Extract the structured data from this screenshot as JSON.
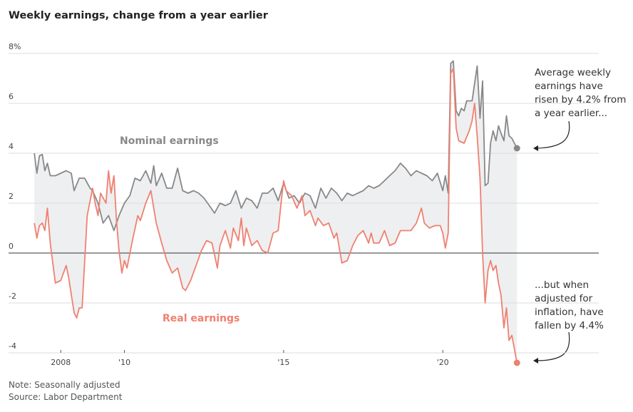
{
  "chart_data": {
    "type": "line",
    "title": "Weekly earnings, change from a year earlier",
    "xlim": [
      2006.36,
      2024.9
    ],
    "xticks": [
      {
        "value": 2008,
        "label": "2008"
      },
      {
        "value": 2010,
        "label": "'10"
      },
      {
        "value": 2015,
        "label": "'15"
      },
      {
        "value": 2020,
        "label": "'20"
      }
    ],
    "ylim": [
      -4,
      8
    ],
    "yticks": [
      {
        "value": 8,
        "label": "8%"
      },
      6,
      4,
      2,
      0,
      -2,
      -4
    ],
    "grid": true,
    "series": [
      {
        "name": "Nominal earnings",
        "color": "#888888",
        "x": [
          2007.17,
          2007.25,
          2007.33,
          2007.42,
          2007.5,
          2007.58,
          2007.67,
          2007.83,
          2008.0,
          2008.17,
          2008.33,
          2008.42,
          2008.58,
          2008.75,
          2008.92,
          2009.0,
          2009.17,
          2009.33,
          2009.5,
          2009.67,
          2009.83,
          2010.0,
          2010.17,
          2010.33,
          2010.5,
          2010.67,
          2010.83,
          2010.92,
          2011.0,
          2011.17,
          2011.33,
          2011.5,
          2011.67,
          2011.83,
          2012.0,
          2012.17,
          2012.33,
          2012.5,
          2012.67,
          2012.83,
          2013.0,
          2013.17,
          2013.33,
          2013.5,
          2013.67,
          2013.83,
          2014.0,
          2014.17,
          2014.33,
          2014.5,
          2014.67,
          2014.83,
          2015.0,
          2015.17,
          2015.33,
          2015.5,
          2015.67,
          2015.83,
          2016.0,
          2016.17,
          2016.33,
          2016.5,
          2016.67,
          2016.83,
          2017.0,
          2017.17,
          2017.33,
          2017.5,
          2017.67,
          2017.83,
          2018.0,
          2018.17,
          2018.33,
          2018.5,
          2018.67,
          2018.83,
          2019.0,
          2019.17,
          2019.33,
          2019.5,
          2019.67,
          2019.83,
          2020.0,
          2020.08,
          2020.17,
          2020.25,
          2020.33,
          2020.42,
          2020.5,
          2020.58,
          2020.67,
          2020.75,
          2020.92,
          2021.0,
          2021.08,
          2021.17,
          2021.25,
          2021.33,
          2021.42,
          2021.5,
          2021.58,
          2021.67,
          2021.75,
          2021.83,
          2021.92,
          2022.0,
          2022.08,
          2022.17,
          2022.33
        ],
        "values": [
          4.0,
          3.2,
          3.9,
          3.95,
          3.3,
          3.6,
          3.1,
          3.1,
          3.2,
          3.3,
          3.2,
          2.5,
          3.0,
          3.0,
          2.6,
          2.5,
          2.0,
          1.2,
          1.5,
          0.9,
          1.5,
          2.0,
          2.3,
          3.0,
          2.9,
          3.3,
          2.8,
          3.5,
          2.7,
          3.2,
          2.6,
          2.6,
          3.4,
          2.5,
          2.4,
          2.5,
          2.4,
          2.2,
          1.9,
          1.6,
          2.0,
          1.9,
          2.0,
          2.5,
          1.8,
          2.2,
          2.1,
          1.8,
          2.4,
          2.4,
          2.6,
          2.1,
          2.8,
          2.2,
          2.3,
          2.0,
          2.4,
          2.3,
          1.8,
          2.6,
          2.2,
          2.6,
          2.4,
          2.1,
          2.4,
          2.3,
          2.4,
          2.5,
          2.7,
          2.6,
          2.7,
          2.9,
          3.1,
          3.3,
          3.6,
          3.4,
          3.1,
          3.3,
          3.2,
          3.1,
          2.9,
          3.2,
          2.5,
          3.1,
          2.4,
          7.6,
          7.7,
          5.7,
          5.5,
          5.8,
          5.7,
          6.1,
          6.1,
          6.8,
          7.5,
          5.4,
          6.9,
          2.7,
          2.8,
          4.4,
          4.9,
          4.5,
          5.1,
          4.8,
          4.5,
          5.5,
          4.7,
          4.6,
          4.2
        ]
      },
      {
        "name": "Real earnings",
        "color": "#f08070",
        "x": [
          2007.17,
          2007.25,
          2007.33,
          2007.42,
          2007.5,
          2007.58,
          2007.67,
          2007.83,
          2008.0,
          2008.17,
          2008.25,
          2008.42,
          2008.5,
          2008.58,
          2008.67,
          2008.83,
          2009.0,
          2009.08,
          2009.17,
          2009.25,
          2009.42,
          2009.5,
          2009.58,
          2009.67,
          2009.75,
          2009.83,
          2009.92,
          2010.0,
          2010.08,
          2010.25,
          2010.42,
          2010.5,
          2010.67,
          2010.83,
          2010.92,
          2011.0,
          2011.17,
          2011.33,
          2011.5,
          2011.67,
          2011.83,
          2011.92,
          2012.08,
          2012.25,
          2012.42,
          2012.58,
          2012.75,
          2012.92,
          2013.0,
          2013.17,
          2013.33,
          2013.42,
          2013.58,
          2013.67,
          2013.75,
          2013.83,
          2014.0,
          2014.17,
          2014.33,
          2014.5,
          2014.67,
          2014.83,
          2014.92,
          2015.0,
          2015.08,
          2015.25,
          2015.42,
          2015.58,
          2015.67,
          2015.83,
          2016.0,
          2016.08,
          2016.25,
          2016.42,
          2016.58,
          2016.67,
          2016.83,
          2017.0,
          2017.17,
          2017.33,
          2017.5,
          2017.67,
          2017.75,
          2017.83,
          2018.0,
          2018.17,
          2018.33,
          2018.5,
          2018.67,
          2018.83,
          2019.0,
          2019.17,
          2019.33,
          2019.42,
          2019.58,
          2019.75,
          2019.92,
          2020.0,
          2020.08,
          2020.17,
          2020.25,
          2020.33,
          2020.42,
          2020.5,
          2020.67,
          2020.83,
          2020.92,
          2021.0,
          2021.08,
          2021.17,
          2021.25,
          2021.33,
          2021.42,
          2021.5,
          2021.58,
          2021.67,
          2021.75,
          2021.83,
          2021.92,
          2022.0,
          2022.08,
          2022.17,
          2022.33
        ],
        "values": [
          1.2,
          0.6,
          1.1,
          1.2,
          0.9,
          1.8,
          0.4,
          -1.2,
          -1.1,
          -0.5,
          -1.0,
          -2.4,
          -2.6,
          -2.2,
          -2.2,
          1.5,
          2.6,
          2.0,
          1.5,
          2.4,
          2.0,
          3.3,
          2.4,
          3.1,
          1.3,
          0.1,
          -0.8,
          -0.3,
          -0.6,
          0.5,
          1.5,
          1.3,
          2.0,
          2.5,
          1.8,
          1.2,
          0.4,
          -0.3,
          -0.8,
          -0.6,
          -1.4,
          -1.5,
          -1.1,
          -0.5,
          0.1,
          0.5,
          0.4,
          -0.6,
          0.3,
          0.9,
          0.2,
          1.0,
          0.5,
          1.4,
          0.3,
          1.0,
          0.3,
          0.5,
          0.1,
          0.0,
          0.8,
          0.9,
          2.0,
          2.9,
          2.5,
          2.3,
          1.8,
          2.3,
          1.5,
          1.7,
          1.1,
          1.4,
          1.1,
          1.2,
          0.6,
          0.8,
          -0.4,
          -0.3,
          0.3,
          0.7,
          0.9,
          0.4,
          0.8,
          0.4,
          0.4,
          0.9,
          0.3,
          0.4,
          0.9,
          0.9,
          0.9,
          1.2,
          1.8,
          1.2,
          1.0,
          1.1,
          1.1,
          0.8,
          0.2,
          0.8,
          7.2,
          7.4,
          5.0,
          4.5,
          4.4,
          4.9,
          5.3,
          6.0,
          4.7,
          3.0,
          0.0,
          -2.0,
          -0.7,
          -0.3,
          -0.7,
          -0.5,
          -1.2,
          -1.7,
          -3.0,
          -2.2,
          -3.5,
          -3.3,
          -4.4
        ]
      }
    ],
    "annotation_top": [
      "Average weekly",
      "earnings have",
      "risen by 4.2% from",
      "a year earlier..."
    ],
    "annotation_bottom": [
      "...but when",
      "adjusted for",
      "inflation, have",
      "fallen by 4.4%"
    ],
    "notes": [
      "Note: Seasonally adjusted",
      "Source: Labor Department"
    ]
  }
}
